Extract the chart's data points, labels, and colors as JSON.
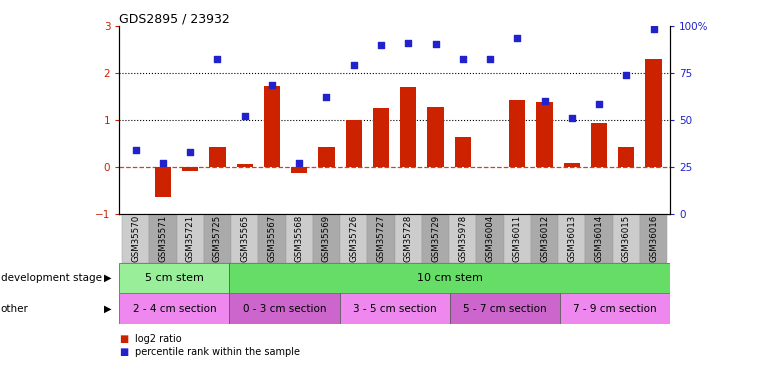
{
  "title": "GDS2895 / 23932",
  "samples": [
    "GSM35570",
    "GSM35571",
    "GSM35721",
    "GSM35725",
    "GSM35565",
    "GSM35567",
    "GSM35568",
    "GSM35569",
    "GSM35726",
    "GSM35727",
    "GSM35728",
    "GSM35729",
    "GSM35978",
    "GSM36004",
    "GSM36011",
    "GSM36012",
    "GSM36013",
    "GSM36014",
    "GSM36015",
    "GSM36016"
  ],
  "log2_ratio": [
    0.0,
    -0.65,
    -0.08,
    0.42,
    0.07,
    1.73,
    -0.13,
    0.42,
    1.0,
    1.25,
    1.7,
    1.28,
    0.63,
    0.0,
    1.42,
    1.38,
    0.08,
    0.93,
    0.42,
    2.3
  ],
  "percentile": [
    0.35,
    0.08,
    0.32,
    2.3,
    1.08,
    1.75,
    0.08,
    1.5,
    2.18,
    2.6,
    2.65,
    2.62,
    2.3,
    2.3,
    2.75,
    1.4,
    1.05,
    1.35,
    1.95,
    2.95
  ],
  "bar_color": "#cc2200",
  "dot_color": "#2222cc",
  "hline_color": "#cc4422",
  "dotted_line_color": "#000000",
  "ylim_left": [
    -1,
    3
  ],
  "ylim_right": [
    0,
    100
  ],
  "yticks_left": [
    -1,
    0,
    1,
    2,
    3
  ],
  "yticks_right": [
    0,
    25,
    50,
    75,
    100
  ],
  "ytick_labels_right": [
    "0",
    "25",
    "50",
    "75",
    "100%"
  ],
  "development_stage_groups": [
    {
      "label": "5 cm stem",
      "start": 0,
      "end": 4,
      "color": "#99ee99"
    },
    {
      "label": "10 cm stem",
      "start": 4,
      "end": 20,
      "color": "#66dd66"
    }
  ],
  "other_groups": [
    {
      "label": "2 - 4 cm section",
      "start": 0,
      "end": 4,
      "color": "#ee88ee"
    },
    {
      "label": "0 - 3 cm section",
      "start": 4,
      "end": 8,
      "color": "#cc66cc"
    },
    {
      "label": "3 - 5 cm section",
      "start": 8,
      "end": 12,
      "color": "#ee88ee"
    },
    {
      "label": "5 - 7 cm section",
      "start": 12,
      "end": 16,
      "color": "#cc66cc"
    },
    {
      "label": "7 - 9 cm section",
      "start": 16,
      "end": 20,
      "color": "#ee88ee"
    }
  ],
  "legend_label_bar": "log2 ratio",
  "legend_label_dot": "percentile rank within the sample",
  "dev_stage_label": "development stage",
  "other_label": "other",
  "xtick_colors": [
    "#cccccc",
    "#aaaaaa"
  ]
}
